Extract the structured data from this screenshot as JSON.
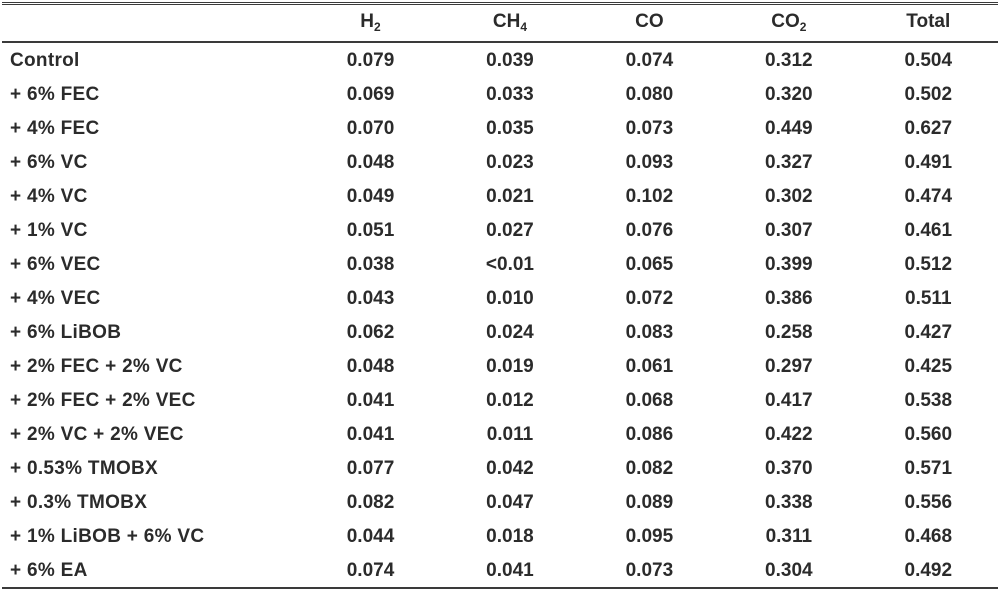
{
  "colors": {
    "background": "#ffffff",
    "text": "#2b2b2b",
    "rule": "#3a3a3a"
  },
  "table": {
    "headers": [
      {
        "text": "",
        "sub": ""
      },
      {
        "text": "H",
        "sub": "2"
      },
      {
        "text": "CH",
        "sub": "4"
      },
      {
        "text": "CO",
        "sub": ""
      },
      {
        "text": "CO",
        "sub": "2"
      },
      {
        "text": "Total",
        "sub": ""
      }
    ],
    "rows": [
      {
        "label": "Control",
        "values": [
          "0.079",
          "0.039",
          "0.074",
          "0.312",
          "0.504"
        ]
      },
      {
        "label": "+ 6% FEC",
        "values": [
          "0.069",
          "0.033",
          "0.080",
          "0.320",
          "0.502"
        ]
      },
      {
        "label": "+ 4% FEC",
        "values": [
          "0.070",
          "0.035",
          "0.073",
          "0.449",
          "0.627"
        ]
      },
      {
        "label": "+ 6% VC",
        "values": [
          "0.048",
          "0.023",
          "0.093",
          "0.327",
          "0.491"
        ]
      },
      {
        "label": "+ 4% VC",
        "values": [
          "0.049",
          "0.021",
          "0.102",
          "0.302",
          "0.474"
        ]
      },
      {
        "label": "+ 1% VC",
        "values": [
          "0.051",
          "0.027",
          "0.076",
          "0.307",
          "0.461"
        ]
      },
      {
        "label": "+ 6% VEC",
        "values": [
          "0.038",
          "<0.01",
          "0.065",
          "0.399",
          "0.512"
        ]
      },
      {
        "label": "+ 4% VEC",
        "values": [
          "0.043",
          "0.010",
          "0.072",
          "0.386",
          "0.511"
        ]
      },
      {
        "label": "+ 6% LiBOB",
        "values": [
          "0.062",
          "0.024",
          "0.083",
          "0.258",
          "0.427"
        ]
      },
      {
        "label": "+ 2% FEC + 2% VC",
        "values": [
          "0.048",
          "0.019",
          "0.061",
          "0.297",
          "0.425"
        ]
      },
      {
        "label": "+ 2% FEC + 2% VEC",
        "values": [
          "0.041",
          "0.012",
          "0.068",
          "0.417",
          "0.538"
        ]
      },
      {
        "label": "+ 2% VC + 2% VEC",
        "values": [
          "0.041",
          "0.011",
          "0.086",
          "0.422",
          "0.560"
        ]
      },
      {
        "label": "+ 0.53% TMOBX",
        "values": [
          "0.077",
          "0.042",
          "0.082",
          "0.370",
          "0.571"
        ]
      },
      {
        "label": "+ 0.3% TMOBX",
        "values": [
          "0.082",
          "0.047",
          "0.089",
          "0.338",
          "0.556"
        ]
      },
      {
        "label": "+ 1% LiBOB + 6% VC",
        "values": [
          "0.044",
          "0.018",
          "0.095",
          "0.311",
          "0.468"
        ]
      },
      {
        "label": "+ 6% EA",
        "values": [
          "0.074",
          "0.041",
          "0.073",
          "0.304",
          "0.492"
        ]
      }
    ]
  }
}
